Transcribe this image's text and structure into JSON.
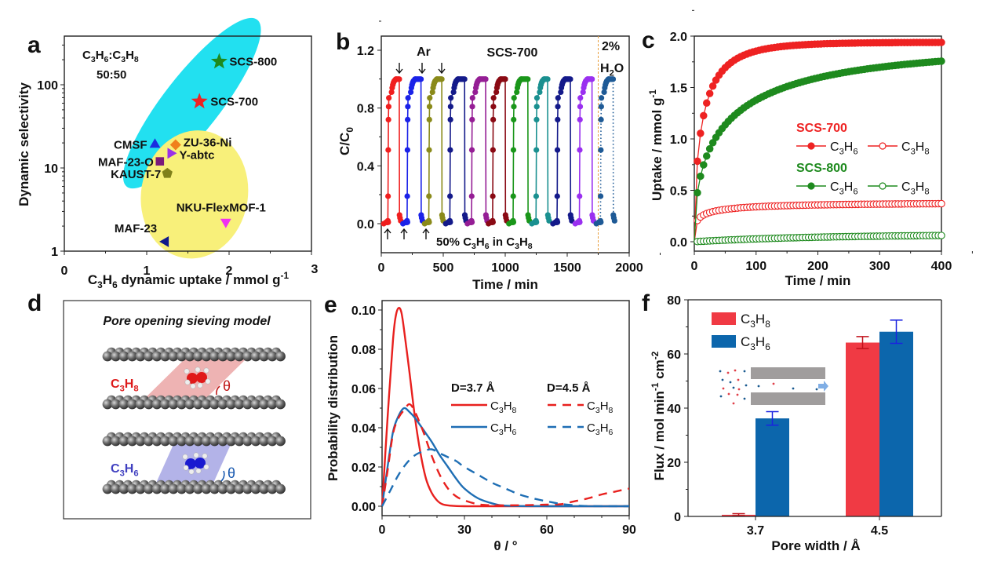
{
  "chart_data": [
    {
      "panel": "a",
      "type": "scatter",
      "xlabel": "C3H6 dynamic uptake / mmol g-1",
      "ylabel": "Dynamic selectivity",
      "xlim": [
        0,
        3
      ],
      "ylim": [
        1,
        300
      ],
      "yscale": "log",
      "xticks": [
        "0",
        "1",
        "2",
        "3"
      ],
      "yticks": [
        "1",
        "10",
        "100"
      ],
      "annotation": [
        "C3H6:C3H8",
        "50:50"
      ],
      "points": [
        {
          "name": "SCS-800",
          "x": 1.88,
          "y": 190,
          "marker": "star",
          "color": "#1e8a1e"
        },
        {
          "name": "SCS-700",
          "x": 1.64,
          "y": 63,
          "marker": "star",
          "color": "#ee2222"
        },
        {
          "name": "CMSF",
          "x": 1.1,
          "y": 19.5,
          "marker": "triangle-up",
          "color": "#1a2de0"
        },
        {
          "name": "ZU-36-Ni",
          "x": 1.35,
          "y": 19,
          "marker": "diamond",
          "color": "#f0801c"
        },
        {
          "name": "Y-abtc",
          "x": 1.3,
          "y": 15,
          "marker": "triangle-right",
          "color": "#9a30e8"
        },
        {
          "name": "MAF-23-O",
          "x": 1.16,
          "y": 12,
          "marker": "square",
          "color": "#7a1a7a"
        },
        {
          "name": "KAUST-7",
          "x": 1.25,
          "y": 8.6,
          "marker": "pentagon",
          "color": "#80801a"
        },
        {
          "name": "NKU-FlexMOF-1",
          "x": 1.96,
          "y": 2.2,
          "marker": "triangle-down",
          "color": "#f030f0"
        },
        {
          "name": "MAF-23",
          "x": 1.22,
          "y": 1.3,
          "marker": "triangle-left",
          "color": "#10188a"
        }
      ],
      "regions": [
        {
          "name": "carbon-region",
          "color": "#22e0f0"
        },
        {
          "name": "mof-region",
          "color": "#f8f07a"
        }
      ]
    },
    {
      "panel": "b",
      "type": "line",
      "xlabel": "Time / min",
      "ylabel": "C/C0",
      "xlim": [
        0,
        2000
      ],
      "ylim": [
        -0.2,
        1.3
      ],
      "xticks": [
        "0",
        "500",
        "1000",
        "1500",
        "2000"
      ],
      "yticks": [
        "0.0",
        "0.4",
        "0.8",
        "1.2"
      ],
      "title": "SCS-700",
      "annotations": {
        "purge": "Ar",
        "feed": "50% C3H6 in C3H8",
        "humid": [
          "2%",
          "H2O"
        ]
      },
      "humid_start": 1750,
      "cycles": [
        {
          "start": 45,
          "end": 145,
          "color": "#f01e1e"
        },
        {
          "start": 200,
          "end": 320,
          "color": "#1a22e8"
        },
        {
          "start": 375,
          "end": 488,
          "color": "#8a8a1a"
        },
        {
          "start": 545,
          "end": 672,
          "color": "#141a8a"
        },
        {
          "start": 720,
          "end": 842,
          "color": "#951e95"
        },
        {
          "start": 890,
          "end": 1000,
          "color": "#8a0a14"
        },
        {
          "start": 1055,
          "end": 1182,
          "color": "#1a961a"
        },
        {
          "start": 1240,
          "end": 1342,
          "color": "#1a9090"
        },
        {
          "start": 1410,
          "end": 1525,
          "color": "#141a8a"
        },
        {
          "start": 1590,
          "end": 1700,
          "color": "#9a30f0"
        },
        {
          "start": 1760,
          "end": 1870,
          "color": "#1e5a96",
          "dotted": true
        }
      ]
    },
    {
      "panel": "c",
      "type": "line",
      "xlabel": "Time / min",
      "ylabel": "Uptake / mmol g-1",
      "xlim": [
        0,
        400
      ],
      "ylim": [
        -0.05,
        2.0
      ],
      "xticks": [
        "0",
        "100",
        "200",
        "300",
        "400"
      ],
      "yticks": [
        "0.0",
        "0.5",
        "1.0",
        "1.5",
        "2.0"
      ],
      "legend": [
        {
          "group": "SCS-700",
          "color": "#ee2222",
          "entries": [
            "C3H6",
            "C3H8"
          ]
        },
        {
          "group": "SCS-800",
          "color": "#1e8a1e",
          "entries": [
            "C3H6",
            "C3H8"
          ]
        }
      ],
      "series": [
        {
          "name": "SCS-700 C3H6",
          "color": "#ee2222",
          "filled": true,
          "ymax": 1.94,
          "tau": 15,
          "shape": 0.6
        },
        {
          "name": "SCS-700 C3H8",
          "color": "#ee2222",
          "filled": false,
          "ymax": 0.38,
          "tau": 10,
          "shape": 0.35
        },
        {
          "name": "SCS-800 C3H6",
          "color": "#1e8a1e",
          "filled": true,
          "ymax": 1.9,
          "tau": 60,
          "shape": 0.5
        },
        {
          "name": "SCS-800 C3H8",
          "color": "#1e8a1e",
          "filled": false,
          "ymax": 0.07,
          "tau": 200,
          "shape": 1.0
        }
      ]
    },
    {
      "panel": "d",
      "type": "diagram",
      "title": "Pore opening sieving model",
      "labels": [
        {
          "molecule": "C3H8",
          "color": "#dd1a1a",
          "angle": "θ"
        },
        {
          "molecule": "C3H6",
          "color": "#4040c0",
          "angle": "θ"
        }
      ]
    },
    {
      "panel": "e",
      "type": "line",
      "xlabel": "θ / °",
      "ylabel": "Probability distribution",
      "xlim": [
        0,
        90
      ],
      "ylim": [
        -0.005,
        0.105
      ],
      "xticks": [
        "0",
        "30",
        "60",
        "90"
      ],
      "yticks": [
        "0.00",
        "0.02",
        "0.04",
        "0.06",
        "0.08",
        "0.10"
      ],
      "legend_titles": [
        "D=3.7 Å",
        "D=4.5 Å"
      ],
      "series": [
        {
          "name": "C3H8",
          "group": "D=3.7 Å",
          "color": "#e8201e",
          "dash": false,
          "x": [
            0,
            2,
            4,
            5,
            6,
            7,
            8,
            10,
            12,
            14,
            16,
            18,
            20,
            22,
            25,
            30,
            40,
            90
          ],
          "y": [
            0,
            0.045,
            0.085,
            0.097,
            0.101,
            0.099,
            0.09,
            0.068,
            0.045,
            0.027,
            0.014,
            0.007,
            0.003,
            0.001,
            0.0003,
            0,
            0,
            0
          ]
        },
        {
          "name": "C3H6",
          "group": "D=3.7 Å",
          "color": "#1e6eb4",
          "dash": false,
          "x": [
            0,
            2,
            4,
            6,
            8,
            10,
            12,
            15,
            18,
            21,
            24,
            27,
            30,
            35,
            40,
            45,
            60,
            90
          ],
          "y": [
            0,
            0.02,
            0.038,
            0.046,
            0.05,
            0.048,
            0.045,
            0.039,
            0.033,
            0.026,
            0.02,
            0.014,
            0.009,
            0.004,
            0.0015,
            0.0003,
            0,
            0
          ]
        },
        {
          "name": "C3H8",
          "group": "D=4.5 Å",
          "color": "#e8201e",
          "dash": true,
          "x": [
            0,
            2,
            4,
            6,
            8,
            10,
            12,
            15,
            18,
            21,
            24,
            27,
            30,
            35,
            40,
            50,
            60,
            65,
            70,
            75,
            80,
            85,
            90
          ],
          "y": [
            0,
            0.018,
            0.037,
            0.045,
            0.049,
            0.052,
            0.048,
            0.038,
            0.026,
            0.016,
            0.009,
            0.005,
            0.003,
            0.001,
            0.0005,
            0.0005,
            0.0008,
            0.001,
            0.0025,
            0.004,
            0.006,
            0.0075,
            0.009
          ]
        },
        {
          "name": "C3H6",
          "group": "D=4.5 Å",
          "color": "#1e6eb4",
          "dash": true,
          "x": [
            0,
            3,
            6,
            9,
            12,
            15,
            18,
            21,
            24,
            27,
            30,
            35,
            40,
            45,
            50,
            55,
            60,
            65,
            70,
            75,
            90
          ],
          "y": [
            0,
            0.008,
            0.016,
            0.022,
            0.026,
            0.028,
            0.029,
            0.027,
            0.025,
            0.023,
            0.02,
            0.016,
            0.012,
            0.009,
            0.006,
            0.004,
            0.0025,
            0.0012,
            0.0005,
            0.0001,
            0
          ]
        }
      ]
    },
    {
      "panel": "f",
      "type": "bar",
      "xlabel": "Pore width / Å",
      "ylabel": "Flux / mol min-1 cm-2",
      "categories": [
        "3.7",
        "4.5"
      ],
      "ylim": [
        0,
        80
      ],
      "yticks": [
        "0",
        "20",
        "40",
        "60",
        "80"
      ],
      "series": [
        {
          "name": "C3H8",
          "color": "#f03a44",
          "err_color": "#c0101a",
          "values": [
            0.6,
            64.2
          ],
          "errors": [
            0.4,
            2.2
          ]
        },
        {
          "name": "C3H6",
          "color": "#0c66ac",
          "err_color": "#1a22e0",
          "values": [
            36.2,
            68.2
          ],
          "errors": [
            2.5,
            4.3
          ]
        }
      ]
    }
  ],
  "panel_labels": [
    "a",
    "b",
    "c",
    "d",
    "e",
    "f"
  ]
}
